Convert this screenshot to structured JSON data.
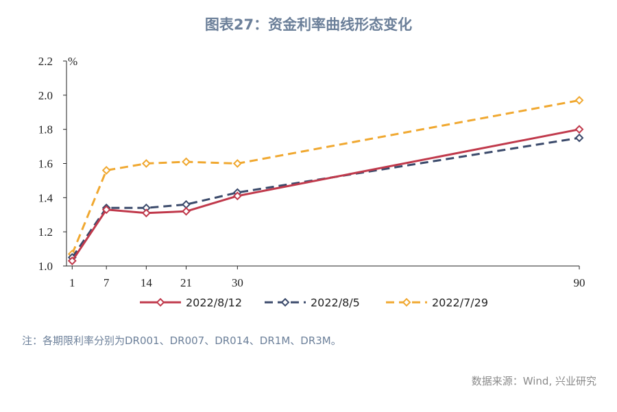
{
  "header": {
    "title": "图表27：资金利率曲线形态变化"
  },
  "footer": {
    "note": "注：各期限利率分别为DR001、DR007、DR014、DR1M、DR3M。",
    "source": "数据来源：Wind, 兴业研究"
  },
  "colors": {
    "series_0": "#c0394b",
    "series_1": "#3b4a6b",
    "series_2": "#f0a830",
    "title": "#6b7f99"
  },
  "chart_data": {
    "type": "line",
    "title": "图表27：资金利率曲线形态变化",
    "xlabel": "",
    "ylabel": "%",
    "x": [
      1,
      7,
      14,
      21,
      30,
      90
    ],
    "xlim": [
      0,
      90
    ],
    "ylim": [
      1.0,
      2.2
    ],
    "yticks": [
      "1.0",
      "1.2",
      "1.4",
      "1.6",
      "1.8",
      "2.0",
      "2.2"
    ],
    "xticks": [
      "1",
      "7",
      "14",
      "21",
      "30",
      "90"
    ],
    "legend_position": "bottom",
    "grid": false,
    "series": [
      {
        "name": "2022/8/12",
        "values": [
          1.03,
          1.33,
          1.31,
          1.32,
          1.41,
          1.8
        ],
        "style": "solid",
        "color": "#c0394b"
      },
      {
        "name": "2022/8/5",
        "values": [
          1.05,
          1.34,
          1.34,
          1.36,
          1.43,
          1.75
        ],
        "style": "dashed",
        "color": "#3b4a6b"
      },
      {
        "name": "2022/7/29",
        "values": [
          1.07,
          1.56,
          1.6,
          1.61,
          1.6,
          1.97
        ],
        "style": "dashed",
        "color": "#f0a830"
      }
    ]
  }
}
